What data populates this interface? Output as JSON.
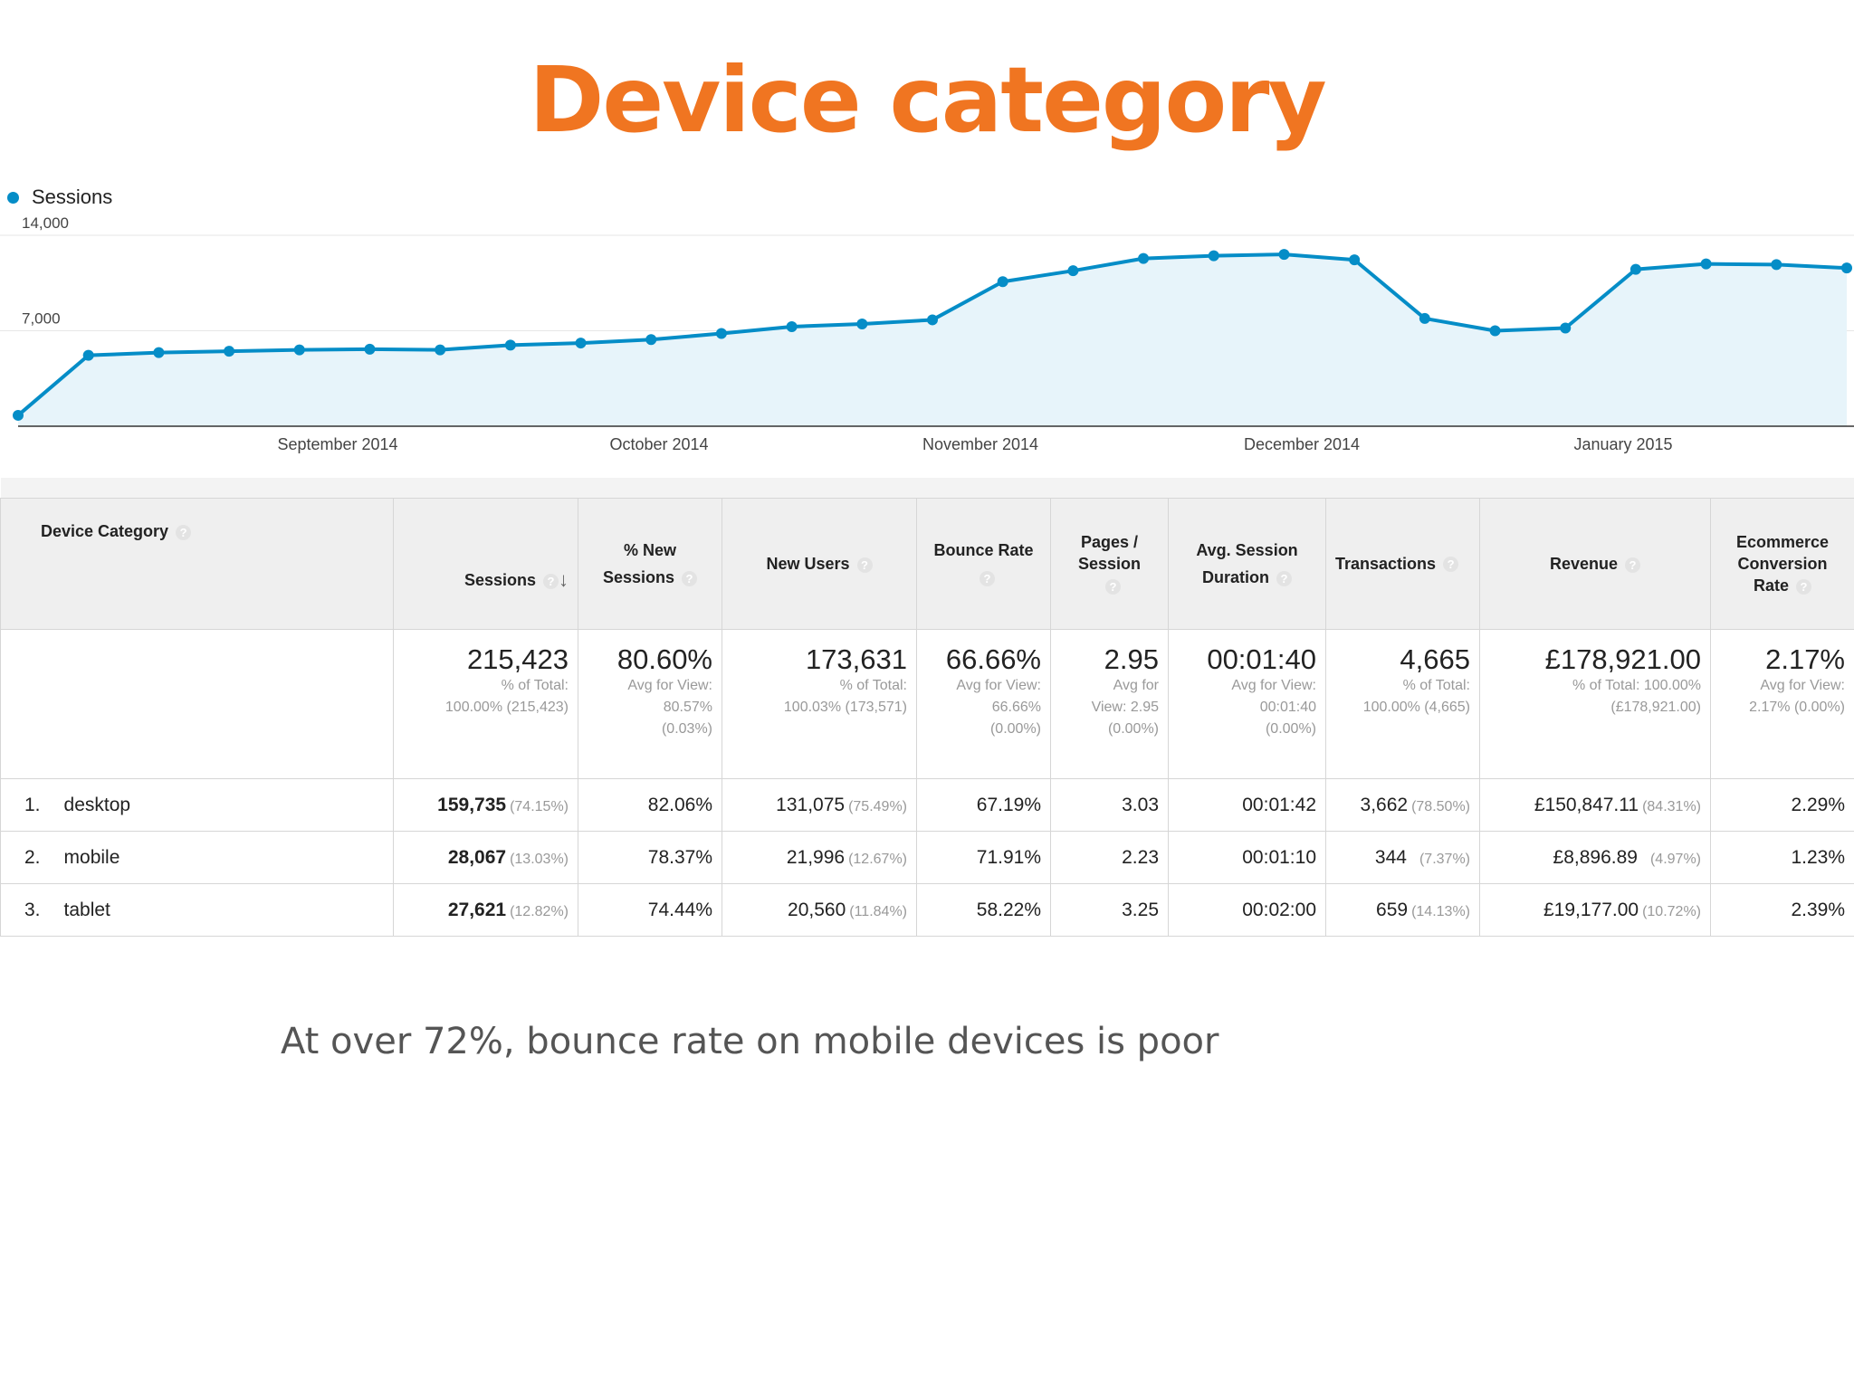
{
  "title": "Device category",
  "caption": "At over 72%, bounce rate on mobile devices is poor",
  "legend": {
    "label": "Sessions",
    "color": "#058dc7"
  },
  "chart_data": {
    "type": "area",
    "series": [
      {
        "name": "Sessions",
        "values": [
          800,
          5200,
          5400,
          5500,
          5600,
          5650,
          5600,
          5950,
          6100,
          6350,
          6800,
          7300,
          7500,
          7800,
          10600,
          11400,
          12300,
          12500,
          12600,
          12200,
          7900,
          7000,
          7200,
          11500,
          11900,
          11850,
          11600
        ]
      }
    ],
    "y_ticks": [
      "14,000",
      "7,000"
    ],
    "ylim": [
      0,
      14000
    ],
    "x_labels": [
      "September 2014",
      "October 2014",
      "November 2014",
      "December 2014",
      "January 2015"
    ],
    "grid": true
  },
  "table": {
    "headers": {
      "device_category": "Device Category",
      "sessions": "Sessions",
      "pct_new_l1": "% New",
      "pct_new_l2": "Sessions",
      "new_users": "New Users",
      "bounce_rate": "Bounce Rate",
      "pages_l1": "Pages /",
      "pages_l2": "Session",
      "duration_l1": "Avg. Session",
      "duration_l2": "Duration",
      "transactions": "Transactions",
      "revenue": "Revenue",
      "ecom_l1": "Ecommerce",
      "ecom_l2": "Conversion",
      "ecom_l3": "Rate",
      "help": "?",
      "sort": "↓"
    },
    "totals": {
      "sessions": {
        "value": "215,423",
        "l1": "% of Total:",
        "l2": "100.00% (215,423)"
      },
      "pct_new": {
        "value": "80.60%",
        "l1": "Avg for View:",
        "l2": "80.57%",
        "l3": "(0.03%)"
      },
      "new_users": {
        "value": "173,631",
        "l1": "% of Total:",
        "l2": "100.03% (173,571)"
      },
      "bounce_rate": {
        "value": "66.66%",
        "l1": "Avg for View:",
        "l2": "66.66%",
        "l3": "(0.00%)"
      },
      "pages": {
        "value": "2.95",
        "l1": "Avg for",
        "l2": "View: 2.95",
        "l3": "(0.00%)"
      },
      "duration": {
        "value": "00:01:40",
        "l1": "Avg for View:",
        "l2": "00:01:40",
        "l3": "(0.00%)"
      },
      "transactions": {
        "value": "4,665",
        "l1": "% of Total:",
        "l2": "100.00% (4,665)"
      },
      "revenue": {
        "value": "£178,921.00",
        "l1": "% of Total: 100.00%",
        "l2": "(£178,921.00)"
      },
      "ecom": {
        "value": "2.17%",
        "l1": "Avg for View:",
        "l2": "2.17% (0.00%)"
      }
    },
    "rows": [
      {
        "index": "1.",
        "device": "desktop",
        "sessions": "159,735",
        "sessions_pct": "(74.15%)",
        "pct_new": "82.06%",
        "new_users": "131,075",
        "new_users_pct": "(75.49%)",
        "bounce_rate": "67.19%",
        "pages": "3.03",
        "duration": "00:01:42",
        "transactions": "3,662",
        "transactions_pct": "(78.50%)",
        "revenue": "£150,847.11",
        "revenue_pct": "(84.31%)",
        "ecom": "2.29%"
      },
      {
        "index": "2.",
        "device": "mobile",
        "sessions": "28,067",
        "sessions_pct": "(13.03%)",
        "pct_new": "78.37%",
        "new_users": "21,996",
        "new_users_pct": "(12.67%)",
        "bounce_rate": "71.91%",
        "pages": "2.23",
        "duration": "00:01:10",
        "transactions": "344",
        "transactions_pct": "(7.37%)",
        "revenue": "£8,896.89",
        "revenue_pct": "(4.97%)",
        "ecom": "1.23%"
      },
      {
        "index": "3.",
        "device": "tablet",
        "sessions": "27,621",
        "sessions_pct": "(12.82%)",
        "pct_new": "74.44%",
        "new_users": "20,560",
        "new_users_pct": "(11.84%)",
        "bounce_rate": "58.22%",
        "pages": "3.25",
        "duration": "00:02:00",
        "transactions": "659",
        "transactions_pct": "(14.13%)",
        "revenue": "£19,177.00",
        "revenue_pct": "(10.72%)",
        "ecom": "2.39%"
      }
    ]
  }
}
